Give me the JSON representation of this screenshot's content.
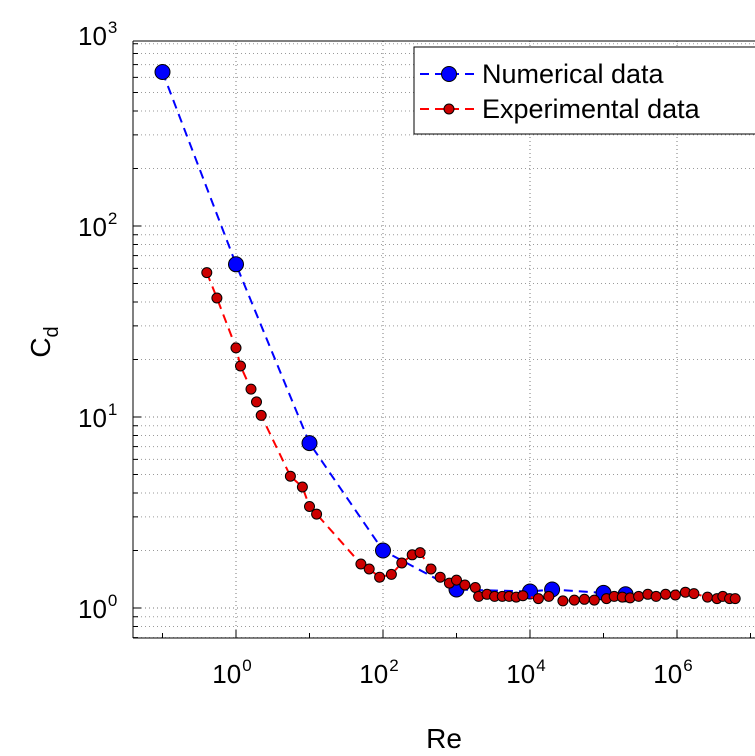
{
  "chart_data": {
    "type": "line",
    "xscale": "log",
    "yscale": "log",
    "xlabel": "Re",
    "ylabel": "C",
    "ylabel_sub": "d",
    "xlim": [
      0.06,
      10000000.0
    ],
    "ylim": [
      0.5,
      1000
    ],
    "grid": true,
    "x_ticks": [
      {
        "base": "10",
        "exp": "0",
        "value": 1
      },
      {
        "base": "10",
        "exp": "2",
        "value": 100
      },
      {
        "base": "10",
        "exp": "4",
        "value": 10000
      },
      {
        "base": "10",
        "exp": "6",
        "value": 1000000
      }
    ],
    "y_ticks": [
      {
        "base": "10",
        "exp": "0",
        "value": 1
      },
      {
        "base": "10",
        "exp": "1",
        "value": 10
      },
      {
        "base": "10",
        "exp": "2",
        "value": 100
      },
      {
        "base": "10",
        "exp": "3",
        "value": 1000
      }
    ],
    "legend_position": "top-right",
    "series": [
      {
        "name": "Numerical data",
        "color": "#0000ff",
        "marker_color": "#0000ff",
        "marker_size": "large",
        "points": [
          [
            0.1,
            640
          ],
          [
            1,
            63
          ],
          [
            10,
            7.3
          ],
          [
            100,
            2.0
          ],
          [
            1000,
            1.25
          ],
          [
            10000,
            1.22
          ],
          [
            20000,
            1.25
          ],
          [
            100000,
            1.2
          ],
          [
            200000,
            1.18
          ]
        ]
      },
      {
        "name": "Experimental data",
        "color": "#ff0000",
        "marker_color": "#cc0000",
        "marker_size": "small",
        "points": [
          [
            0.4,
            57
          ],
          [
            0.55,
            42
          ],
          [
            1.0,
            23
          ],
          [
            1.15,
            18.5
          ],
          [
            1.6,
            14
          ],
          [
            1.9,
            12
          ],
          [
            2.2,
            10.2
          ],
          [
            5.5,
            4.9
          ],
          [
            8,
            4.3
          ],
          [
            10,
            3.4
          ],
          [
            12.5,
            3.1
          ],
          [
            50,
            1.7
          ],
          [
            65,
            1.6
          ],
          [
            90,
            1.45
          ],
          [
            130,
            1.5
          ],
          [
            180,
            1.72
          ],
          [
            250,
            1.9
          ],
          [
            320,
            1.95
          ],
          [
            450,
            1.6
          ],
          [
            600,
            1.45
          ],
          [
            800,
            1.35
          ],
          [
            1000,
            1.4
          ],
          [
            1300,
            1.32
          ],
          [
            1800,
            1.28
          ],
          [
            2000,
            1.15
          ],
          [
            2600,
            1.18
          ],
          [
            3300,
            1.15
          ],
          [
            4200,
            1.15
          ],
          [
            5200,
            1.15
          ],
          [
            6500,
            1.14
          ],
          [
            8000,
            1.16
          ],
          [
            13000,
            1.12
          ],
          [
            18000,
            1.15
          ],
          [
            28000,
            1.09
          ],
          [
            40000,
            1.1
          ],
          [
            55000,
            1.11
          ],
          [
            75000,
            1.1
          ],
          [
            110000,
            1.12
          ],
          [
            140000,
            1.15
          ],
          [
            180000,
            1.14
          ],
          [
            230000,
            1.13
          ],
          [
            300000,
            1.15
          ],
          [
            400000,
            1.18
          ],
          [
            520000,
            1.15
          ],
          [
            700000,
            1.18
          ],
          [
            950000,
            1.17
          ],
          [
            1300000,
            1.21
          ],
          [
            1700000,
            1.19
          ],
          [
            2600000,
            1.14
          ],
          [
            3500000,
            1.12
          ],
          [
            4200000,
            1.15
          ],
          [
            5200000,
            1.12
          ],
          [
            6200000,
            1.12
          ]
        ]
      }
    ]
  }
}
